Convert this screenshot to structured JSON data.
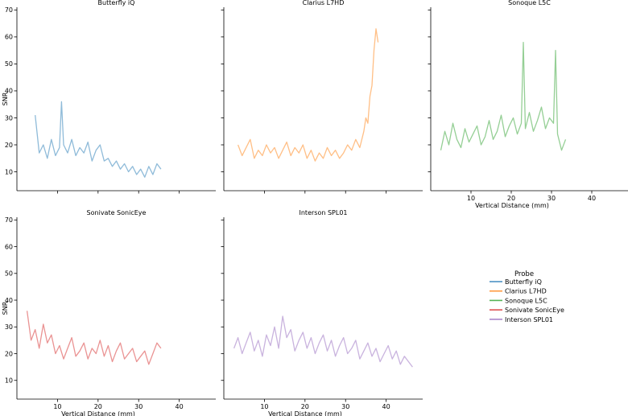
{
  "figure": {
    "shared_ylabel": "SNR",
    "shared_xlabel": "Vertical Distance (mm)"
  },
  "legend": {
    "title": "Probe",
    "entries": [
      {
        "label": "Butterfly iQ",
        "color": "#1f77b4"
      },
      {
        "label": "Clarius L7HD",
        "color": "#ff7f0e"
      },
      {
        "label": "Sonoque L5C",
        "color": "#2ca02c"
      },
      {
        "label": "Sonivate SonicEye",
        "color": "#d62728"
      },
      {
        "label": "Interson SPL01",
        "color": "#9467bd"
      }
    ]
  },
  "chart_data": [
    {
      "type": "line",
      "title": "Butterfly iQ",
      "color": "#1f77b4",
      "alpha": 0.5,
      "xlabel": "",
      "ylabel": "SNR",
      "xlim": [
        0,
        49
      ],
      "ylim": [
        3,
        71
      ],
      "xticks": [],
      "yticks": [
        10,
        20,
        30,
        40,
        50,
        60,
        70
      ],
      "x": [
        4.5,
        5.5,
        6.5,
        7.5,
        8.5,
        9.5,
        10.5,
        11.0,
        11.5,
        12.5,
        13.5,
        14.5,
        15.5,
        16.5,
        17.5,
        18.5,
        19.5,
        20.5,
        21.5,
        22.5,
        23.5,
        24.5,
        25.5,
        26.5,
        27.5,
        28.5,
        29.5,
        30.5,
        31.5,
        32.5,
        33.5,
        34.5,
        35.5
      ],
      "y": [
        31,
        17,
        20,
        15,
        22,
        16,
        19,
        36,
        20,
        17,
        22,
        16,
        19,
        17,
        21,
        14,
        18,
        20,
        14,
        15,
        12,
        14,
        11,
        13,
        10,
        12,
        9,
        11,
        8,
        12,
        9,
        13,
        11
      ]
    },
    {
      "type": "line",
      "title": "Clarius L7HD",
      "color": "#ff7f0e",
      "alpha": 0.5,
      "xlabel": "",
      "ylabel": "",
      "xlim": [
        0,
        49
      ],
      "ylim": [
        3,
        71
      ],
      "xticks": [],
      "yticks": [],
      "x": [
        3.5,
        4.5,
        5.5,
        6.5,
        7.5,
        8.5,
        9.5,
        10.5,
        11.5,
        12.5,
        13.5,
        14.5,
        15.5,
        16.5,
        17.5,
        18.5,
        19.5,
        20.5,
        21.5,
        22.5,
        23.5,
        24.5,
        25.5,
        26.5,
        27.5,
        28.5,
        29.5,
        30.5,
        31.5,
        32.5,
        33.5,
        34.5,
        35.0,
        35.5,
        36.0,
        36.5,
        37.0,
        37.5,
        38.0
      ],
      "y": [
        20,
        16,
        19,
        22,
        15,
        18,
        16,
        20,
        17,
        19,
        15,
        18,
        21,
        16,
        19,
        17,
        20,
        15,
        18,
        14,
        17,
        15,
        19,
        16,
        18,
        15,
        17,
        20,
        18,
        22,
        19,
        25,
        30,
        28,
        38,
        42,
        55,
        63,
        58
      ]
    },
    {
      "type": "line",
      "title": "Sonoque L5C",
      "color": "#2ca02c",
      "alpha": 0.5,
      "xlabel": "Vertical Distance (mm)",
      "ylabel": "",
      "xlim": [
        0,
        49
      ],
      "ylim": [
        3,
        71
      ],
      "xticks": [
        10,
        20,
        30,
        40
      ],
      "yticks": [],
      "x": [
        2.5,
        3.5,
        4.5,
        5.5,
        6.5,
        7.5,
        8.5,
        9.5,
        10.5,
        11.5,
        12.5,
        13.5,
        14.5,
        15.5,
        16.5,
        17.5,
        18.5,
        19.5,
        20.5,
        21.5,
        22.5,
        23.0,
        23.5,
        24.5,
        25.5,
        26.5,
        27.5,
        28.5,
        29.5,
        30.5,
        31.0,
        31.5,
        32.5,
        33.5
      ],
      "y": [
        18,
        25,
        20,
        28,
        22,
        19,
        26,
        21,
        24,
        27,
        20,
        23,
        29,
        22,
        25,
        31,
        23,
        27,
        30,
        24,
        28,
        58,
        26,
        32,
        25,
        29,
        34,
        26,
        30,
        28,
        55,
        24,
        18,
        22
      ]
    },
    {
      "type": "line",
      "title": "Sonivate SonicEye",
      "color": "#d62728",
      "alpha": 0.5,
      "xlabel": "Vertical Distance (mm)",
      "ylabel": "SNR",
      "xlim": [
        0,
        49
      ],
      "ylim": [
        3,
        71
      ],
      "xticks": [
        10,
        20,
        30,
        40
      ],
      "yticks": [
        10,
        20,
        30,
        40,
        50,
        60,
        70
      ],
      "x": [
        2.5,
        3.5,
        4.5,
        5.5,
        6.5,
        7.5,
        8.5,
        9.5,
        10.5,
        11.5,
        12.5,
        13.5,
        14.5,
        15.5,
        16.5,
        17.5,
        18.5,
        19.5,
        20.5,
        21.5,
        22.5,
        23.5,
        24.5,
        25.5,
        26.5,
        27.5,
        28.5,
        29.5,
        30.5,
        31.5,
        32.5,
        33.5,
        34.5,
        35.5
      ],
      "y": [
        36,
        25,
        29,
        22,
        31,
        24,
        27,
        20,
        23,
        18,
        22,
        26,
        19,
        21,
        24,
        18,
        22,
        20,
        25,
        19,
        23,
        17,
        21,
        24,
        18,
        20,
        22,
        17,
        19,
        21,
        16,
        20,
        24,
        22
      ]
    },
    {
      "type": "line",
      "title": "Interson SPL01",
      "color": "#9467bd",
      "alpha": 0.5,
      "xlabel": "Vertical Distance (mm)",
      "ylabel": "",
      "xlim": [
        0,
        49
      ],
      "ylim": [
        3,
        71
      ],
      "xticks": [
        10,
        20,
        30,
        40
      ],
      "yticks": [],
      "x": [
        2.5,
        3.5,
        4.5,
        5.5,
        6.5,
        7.5,
        8.5,
        9.5,
        10.5,
        11.5,
        12.5,
        13.5,
        14.5,
        15.5,
        16.5,
        17.5,
        18.5,
        19.5,
        20.5,
        21.5,
        22.5,
        23.5,
        24.5,
        25.5,
        26.5,
        27.5,
        28.5,
        29.5,
        30.5,
        31.5,
        32.5,
        33.5,
        34.5,
        35.5,
        36.5,
        37.5,
        38.5,
        39.5,
        40.5,
        41.5,
        42.5,
        43.5,
        44.5,
        45.5,
        46.5
      ],
      "y": [
        22,
        26,
        20,
        24,
        28,
        21,
        25,
        19,
        27,
        23,
        30,
        22,
        34,
        26,
        29,
        21,
        25,
        28,
        22,
        26,
        20,
        24,
        27,
        21,
        25,
        19,
        23,
        26,
        20,
        22,
        25,
        18,
        21,
        24,
        19,
        22,
        17,
        20,
        23,
        18,
        21,
        16,
        19,
        17,
        15
      ]
    }
  ]
}
